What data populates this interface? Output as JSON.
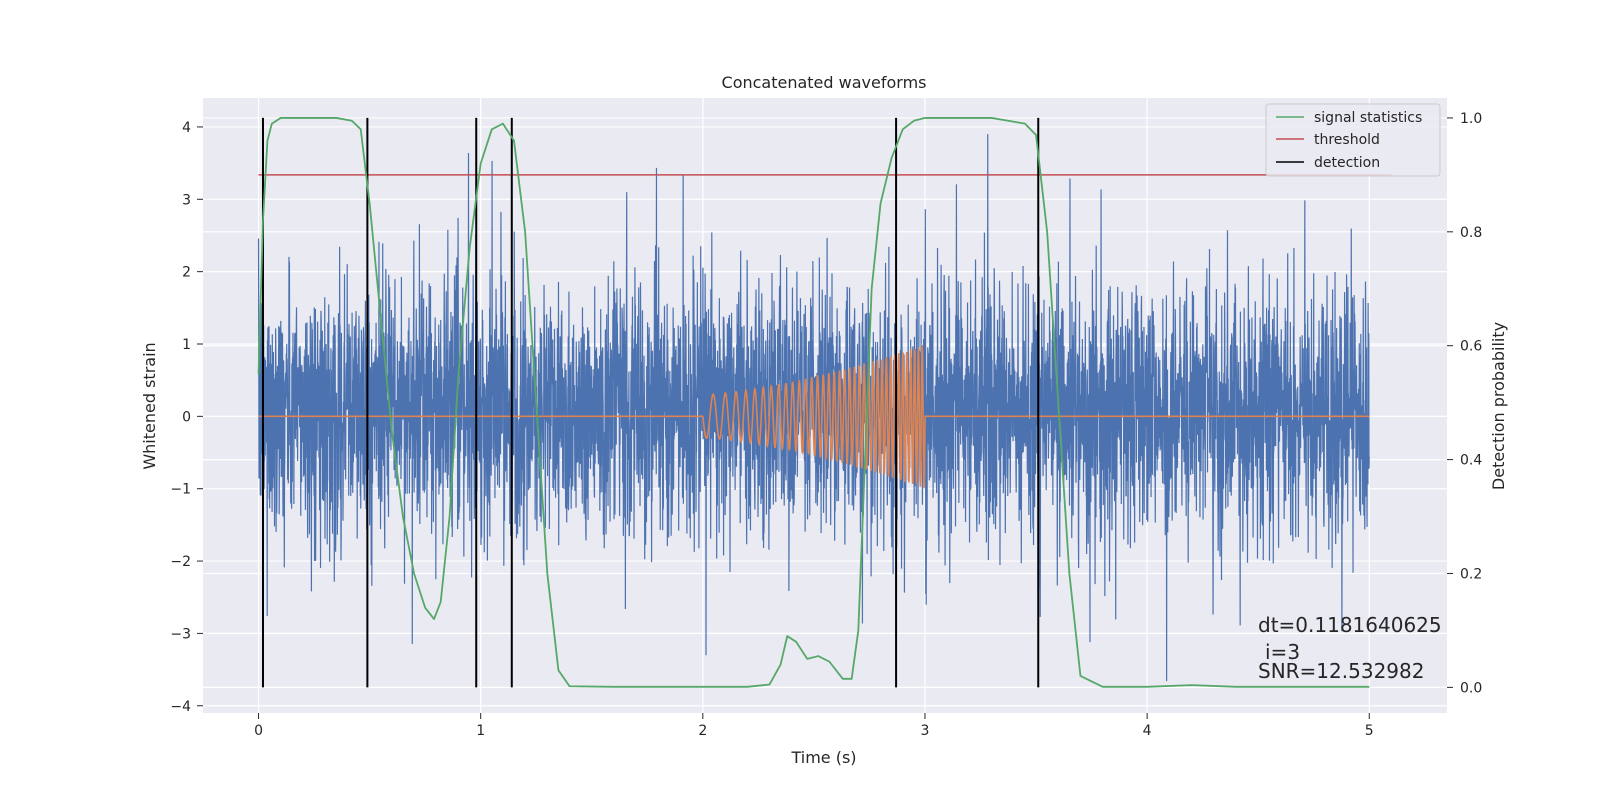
{
  "chart_data": {
    "type": "line",
    "title": "Concatenated waveforms",
    "xlabel": "Time (s)",
    "ylabel": "Whitened strain",
    "y2label": "Detection probability",
    "xlim": [
      -0.25,
      5.35
    ],
    "ylim": [
      -4.1,
      4.4
    ],
    "y2lim": [
      -0.045,
      1.035
    ],
    "xticks": [
      0,
      1,
      2,
      3,
      4,
      5
    ],
    "yticks": [
      -4,
      -3,
      -2,
      -1,
      0,
      1,
      2,
      3,
      4
    ],
    "y2ticks": [
      0.0,
      0.2,
      0.4,
      0.6,
      0.8,
      1.0
    ],
    "xtick_labels": [
      "0",
      "1",
      "2",
      "3",
      "4",
      "5"
    ],
    "ytick_labels": [
      "−4",
      "−3",
      "−2",
      "−1",
      "0",
      "1",
      "2",
      "3",
      "4"
    ],
    "y2tick_labels": [
      "0.0",
      "0.2",
      "0.4",
      "0.6",
      "0.8",
      "1.0"
    ],
    "grid": true,
    "legend_placement": "top-right",
    "colors": {
      "strain": "#4c72b0",
      "template": "#dd8452",
      "signal_statistics": "#55a868",
      "threshold": "#c44e52",
      "detection": "#000000",
      "plot_bg": "#eaeaf2",
      "grid": "#ffffff"
    },
    "legend": [
      {
        "label": "signal statistics",
        "color": "#55a868"
      },
      {
        "label": "threshold",
        "color": "#c44e52"
      },
      {
        "label": "detection",
        "color": "#000000"
      }
    ],
    "strain_noise": {
      "x_range": [
        0,
        5
      ],
      "typical_range": [
        -1.6,
        1.8
      ],
      "peak_range": [
        -3.7,
        3.9
      ]
    },
    "template_chirp": {
      "x_range": [
        2.0,
        3.0
      ],
      "amp_start": 0.3,
      "amp_end": 1.0,
      "freq_start_hz": 15,
      "freq_end_hz": 60,
      "baseline_range": [
        0,
        5
      ]
    },
    "threshold_value": 0.9,
    "threshold_x_range": [
      0,
      5.1
    ],
    "detection_times": [
      0.02,
      0.49,
      0.98,
      1.14,
      2.87,
      3.51
    ],
    "detection_y_range": [
      0.0,
      1.0
    ],
    "signal_statistics": {
      "x": [
        0.0,
        0.02,
        0.04,
        0.06,
        0.1,
        0.2,
        0.35,
        0.42,
        0.46,
        0.5,
        0.55,
        0.6,
        0.65,
        0.7,
        0.75,
        0.79,
        0.82,
        0.86,
        0.9,
        0.95,
        1.0,
        1.05,
        1.1,
        1.15,
        1.2,
        1.25,
        1.3,
        1.35,
        1.4,
        1.6,
        2.0,
        2.2,
        2.3,
        2.35,
        2.38,
        2.42,
        2.47,
        2.52,
        2.57,
        2.63,
        2.67,
        2.7,
        2.73,
        2.76,
        2.8,
        2.85,
        2.9,
        2.95,
        3.0,
        3.1,
        3.3,
        3.45,
        3.5,
        3.55,
        3.6,
        3.65,
        3.7,
        3.8,
        4.0,
        4.2,
        4.4,
        4.7,
        5.0
      ],
      "y": [
        0.55,
        0.82,
        0.96,
        0.99,
        1.0,
        1.0,
        1.0,
        0.995,
        0.98,
        0.85,
        0.65,
        0.45,
        0.3,
        0.2,
        0.14,
        0.12,
        0.15,
        0.3,
        0.55,
        0.77,
        0.92,
        0.98,
        0.99,
        0.96,
        0.8,
        0.5,
        0.2,
        0.03,
        0.002,
        0.001,
        0.001,
        0.001,
        0.005,
        0.04,
        0.09,
        0.08,
        0.05,
        0.055,
        0.045,
        0.015,
        0.015,
        0.1,
        0.4,
        0.7,
        0.85,
        0.93,
        0.98,
        0.995,
        1.0,
        1.0,
        1.0,
        0.99,
        0.97,
        0.8,
        0.5,
        0.2,
        0.02,
        0.001,
        0.001,
        0.004,
        0.001,
        0.001,
        0.001
      ]
    },
    "annotations": [
      "dt=0.1181640625",
      "i=3",
      "SNR=12.532982"
    ]
  }
}
